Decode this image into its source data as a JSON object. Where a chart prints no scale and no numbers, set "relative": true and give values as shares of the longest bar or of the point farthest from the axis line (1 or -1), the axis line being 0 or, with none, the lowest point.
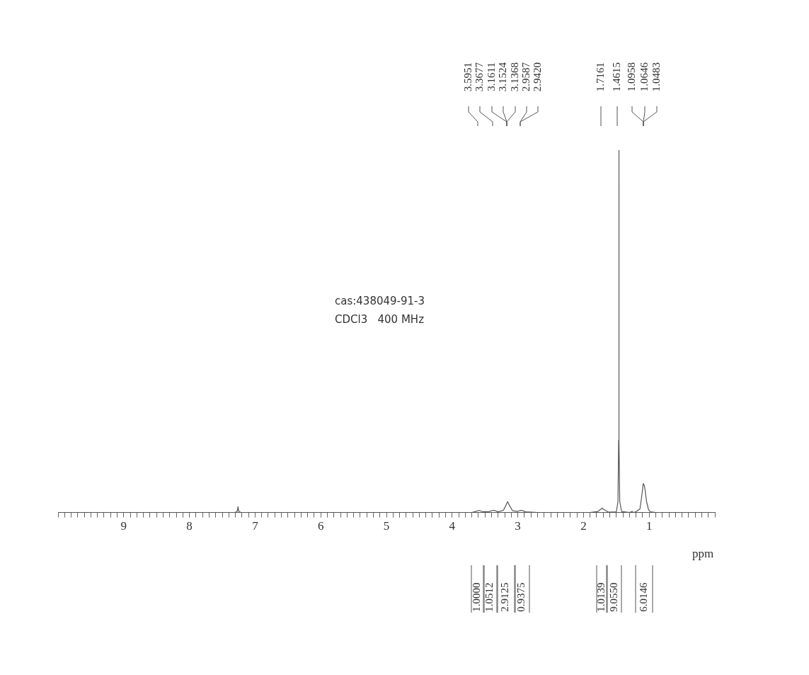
{
  "chart_data": {
    "type": "line",
    "relative": true,
    "xlabel": "ppm",
    "xlim": [
      10,
      0
    ],
    "xticks": [
      {
        "value": 10,
        "label": null
      },
      {
        "value": 9.9,
        "label": null
      },
      {
        "value": 9.8,
        "label": null
      },
      {
        "value": 9.7,
        "label": null
      },
      {
        "value": 9.6,
        "label": null
      },
      {
        "value": 9.5,
        "label": null
      },
      {
        "value": 9.4,
        "label": null
      },
      {
        "value": 9.3,
        "label": null
      },
      {
        "value": 9.2,
        "label": null
      },
      {
        "value": 9.1,
        "label": null
      },
      9,
      {
        "value": 8.9,
        "label": null
      },
      {
        "value": 8.8,
        "label": null
      },
      {
        "value": 8.7,
        "label": null
      },
      {
        "value": 8.6,
        "label": null
      },
      {
        "value": 8.5,
        "label": null
      },
      {
        "value": 8.4,
        "label": null
      },
      {
        "value": 8.3,
        "label": null
      },
      {
        "value": 8.2,
        "label": null
      },
      {
        "value": 8.1,
        "label": null
      },
      8,
      {
        "value": 7.9,
        "label": null
      },
      {
        "value": 7.8,
        "label": null
      },
      {
        "value": 7.7,
        "label": null
      },
      {
        "value": 7.6,
        "label": null
      },
      {
        "value": 7.5,
        "label": null
      },
      {
        "value": 7.4,
        "label": null
      },
      {
        "value": 7.3,
        "label": null
      },
      {
        "value": 7.2,
        "label": null
      },
      {
        "value": 7.1,
        "label": null
      },
      7,
      {
        "value": 6.9,
        "label": null
      },
      {
        "value": 6.8,
        "label": null
      },
      {
        "value": 6.7,
        "label": null
      },
      {
        "value": 6.6,
        "label": null
      },
      {
        "value": 6.5,
        "label": null
      },
      {
        "value": 6.4,
        "label": null
      },
      {
        "value": 6.3,
        "label": null
      },
      {
        "value": 6.2,
        "label": null
      },
      {
        "value": 6.1,
        "label": null
      },
      6,
      {
        "value": 5.9,
        "label": null
      },
      {
        "value": 5.8,
        "label": null
      },
      {
        "value": 5.7,
        "label": null
      },
      {
        "value": 5.6,
        "label": null
      },
      {
        "value": 5.5,
        "label": null
      },
      {
        "value": 5.4,
        "label": null
      },
      {
        "value": 5.3,
        "label": null
      },
      {
        "value": 5.2,
        "label": null
      },
      {
        "value": 5.1,
        "label": null
      },
      5,
      {
        "value": 4.9,
        "label": null
      },
      {
        "value": 4.8,
        "label": null
      },
      {
        "value": 4.7,
        "label": null
      },
      {
        "value": 4.6,
        "label": null
      },
      {
        "value": 4.5,
        "label": null
      },
      {
        "value": 4.4,
        "label": null
      },
      {
        "value": 4.3,
        "label": null
      },
      {
        "value": 4.2,
        "label": null
      },
      {
        "value": 4.1,
        "label": null
      },
      4,
      {
        "value": 3.9,
        "label": null
      },
      {
        "value": 3.8,
        "label": null
      },
      {
        "value": 3.7,
        "label": null
      },
      {
        "value": 3.6,
        "label": null
      },
      {
        "value": 3.5,
        "label": null
      },
      {
        "value": 3.4,
        "label": null
      },
      {
        "value": 3.3,
        "label": null
      },
      {
        "value": 3.2,
        "label": null
      },
      {
        "value": 3.1,
        "label": null
      },
      3,
      {
        "value": 2.9,
        "label": null
      },
      {
        "value": 2.8,
        "label": null
      },
      {
        "value": 2.7,
        "label": null
      },
      {
        "value": 2.6,
        "label": null
      },
      {
        "value": 2.5,
        "label": null
      },
      {
        "value": 2.4,
        "label": null
      },
      {
        "value": 2.3,
        "label": null
      },
      {
        "value": 2.2,
        "label": null
      },
      {
        "value": 2.1,
        "label": null
      },
      2,
      {
        "value": 1.9,
        "label": null
      },
      {
        "value": 1.8,
        "label": null
      },
      {
        "value": 1.7,
        "label": null
      },
      {
        "value": 1.6,
        "label": null
      },
      {
        "value": 1.5,
        "label": null
      },
      {
        "value": 1.4,
        "label": null
      },
      {
        "value": 1.3,
        "label": null
      },
      {
        "value": 1.2,
        "label": null
      },
      {
        "value": 1.1,
        "label": null
      },
      1,
      {
        "value": 0.9,
        "label": null
      },
      {
        "value": 0.8,
        "label": null
      },
      {
        "value": 0.7,
        "label": null
      },
      {
        "value": 0.6,
        "label": null
      },
      {
        "value": 0.5,
        "label": null
      },
      {
        "value": 0.4,
        "label": null
      },
      {
        "value": 0.3,
        "label": null
      },
      {
        "value": 0.2,
        "label": null
      },
      {
        "value": 0.1,
        "label": null
      },
      {
        "value": 0,
        "label": null
      }
    ],
    "grid": false,
    "legend": false,
    "marker": "none",
    "line_style": "solid",
    "series": [
      {
        "color": "#555555",
        "x": [
          10,
          9,
          8,
          7.3,
          7.27,
          7.26,
          7.25,
          7.22,
          6,
          5,
          4,
          3.7,
          3.62,
          3.59,
          3.55,
          3.45,
          3.38,
          3.36,
          3.3,
          3.22,
          3.18,
          3.155,
          3.13,
          3.08,
          3.0,
          2.96,
          2.94,
          2.88,
          2.7,
          2.3,
          1.9,
          1.78,
          1.73,
          1.715,
          1.69,
          1.62,
          1.5,
          1.475,
          1.465,
          1.4615,
          1.458,
          1.448,
          1.42,
          1.3,
          1.26,
          1.24,
          1.2,
          1.14,
          1.11,
          1.09,
          1.075,
          1.06,
          1.04,
          1.01,
          0.98,
          0.9,
          0.5,
          0
        ],
        "values": [
          0,
          0,
          0,
          0,
          0.004,
          0.016,
          0.004,
          0,
          0,
          0,
          0,
          0,
          0.004,
          0.006,
          0.003,
          0.002,
          0.006,
          0.006,
          0.002,
          0.006,
          0.02,
          0.03,
          0.02,
          0.005,
          0.003,
          0.006,
          0.006,
          0.002,
          0,
          0,
          0,
          0.003,
          0.01,
          0.012,
          0.008,
          0.001,
          0.002,
          0.03,
          0.2,
          1,
          0.2,
          0.03,
          0.003,
          0,
          0.003,
          0,
          0.002,
          0.01,
          0.05,
          0.08,
          0.075,
          0.06,
          0.03,
          0.008,
          0.002,
          0,
          0,
          0
        ]
      }
    ],
    "annotations": [
      "cas:438049-91-3",
      "CDCl3   400 MHz",
      "3.5951",
      "3.3677",
      "3.1611",
      "3.1524",
      "3.1368",
      "2.9587",
      "2.9420",
      "1.7161",
      "1.4615",
      "1.0958",
      "1.0646",
      "1.0483",
      "1.0000",
      "1.0512",
      "2.9125",
      "0.9375",
      "1.0139",
      "9.0550",
      "6.0146"
    ]
  }
}
